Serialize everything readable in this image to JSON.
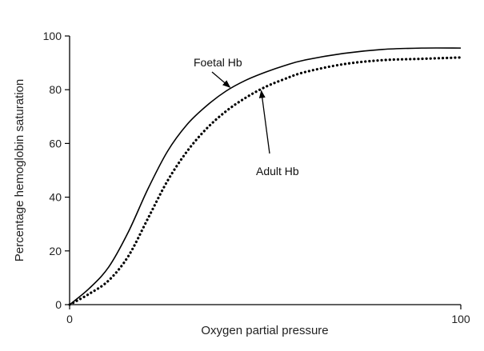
{
  "chart_data": {
    "type": "line",
    "xlabel": "Oxygen partial pressure",
    "ylabel": "Percentage hemoglobin saturation",
    "xlim": [
      0,
      100
    ],
    "ylim": [
      0,
      100
    ],
    "x_ticks": [
      0,
      100
    ],
    "y_ticks": [
      0,
      20,
      40,
      60,
      80,
      100
    ],
    "grid": false,
    "series": [
      {
        "name": "Foetal Hb",
        "style": "solid",
        "color": "#000000",
        "x": [
          0,
          5,
          10,
          15,
          20,
          25,
          30,
          35,
          40,
          45,
          50,
          55,
          60,
          70,
          80,
          90,
          100
        ],
        "y": [
          0,
          6,
          14,
          27,
          43,
          57,
          67,
          74,
          79.5,
          83.5,
          86.5,
          89,
          91,
          93.5,
          95,
          95.5,
          95.5
        ]
      },
      {
        "name": "Adult Hb",
        "style": "dotted",
        "color": "#000000",
        "x": [
          0,
          5,
          10,
          15,
          20,
          25,
          30,
          35,
          40,
          45,
          50,
          55,
          60,
          70,
          80,
          90,
          100
        ],
        "y": [
          0,
          4,
          9,
          18,
          32,
          46,
          57,
          65.5,
          72,
          77,
          81,
          84,
          86.5,
          89.5,
          91,
          91.5,
          92
        ]
      }
    ],
    "annotations": [
      {
        "text": "Foetal Hb",
        "target_series": "Foetal Hb",
        "target_x": 41
      },
      {
        "text": "Adult Hb",
        "target_series": "Adult Hb",
        "target_x": 49
      }
    ]
  }
}
